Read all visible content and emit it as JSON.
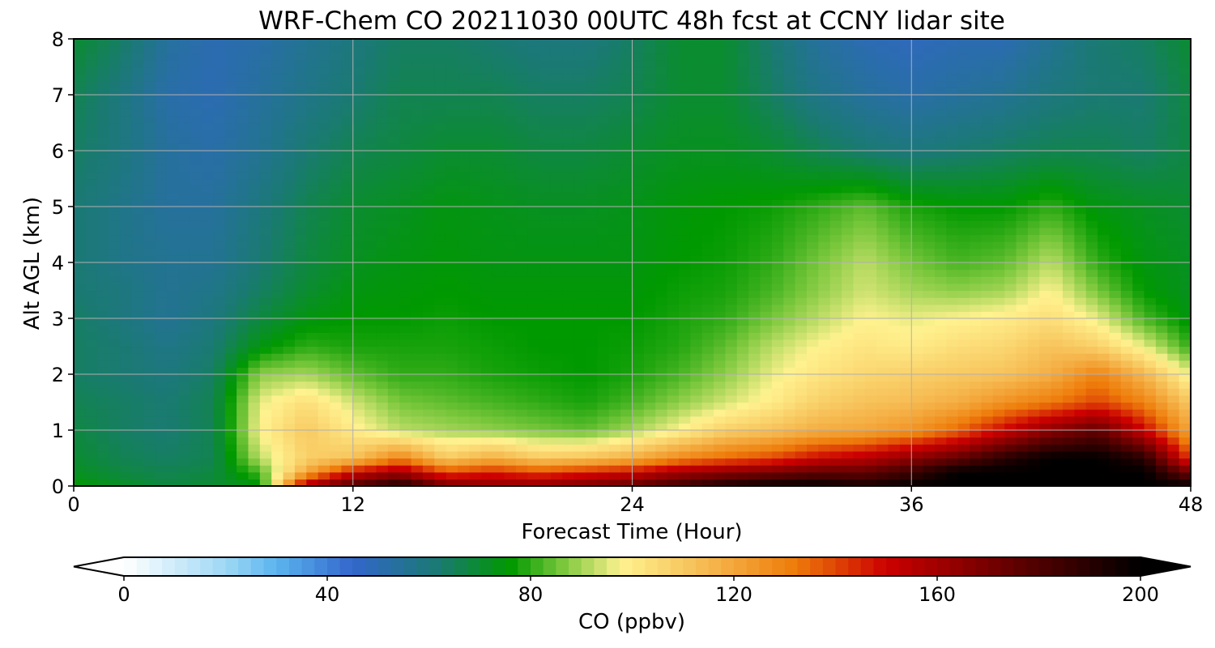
{
  "chart_data": {
    "type": "heatmap",
    "title": "WRF-Chem CO  20211030 00UTC 48h fcst at CCNY lidar site",
    "xlabel": "Forecast Time (Hour)",
    "ylabel": "Alt AGL (km)",
    "xlim": [
      0,
      48
    ],
    "ylim": [
      0,
      8
    ],
    "xticks": [
      0,
      12,
      24,
      36,
      48
    ],
    "yticks": [
      0,
      1,
      2,
      3,
      4,
      5,
      6,
      7,
      8
    ],
    "grid": true,
    "colorbar": {
      "label": "CO  (ppbv)",
      "min": 0,
      "max": 200,
      "ticks": [
        0,
        40,
        80,
        120,
        160,
        200
      ],
      "extend": "both",
      "stops": [
        {
          "v": 0,
          "c": "#ffffff"
        },
        {
          "v": 20,
          "c": "#9fd8f5"
        },
        {
          "v": 30,
          "c": "#5ab4ee"
        },
        {
          "v": 45,
          "c": "#3366cc"
        },
        {
          "v": 62,
          "c": "#1a7a72"
        },
        {
          "v": 76,
          "c": "#009900"
        },
        {
          "v": 86,
          "c": "#77c63a"
        },
        {
          "v": 98,
          "c": "#fff28f"
        },
        {
          "v": 112,
          "c": "#f7c25a"
        },
        {
          "v": 132,
          "c": "#ee7c0a"
        },
        {
          "v": 150,
          "c": "#cc0000"
        },
        {
          "v": 174,
          "c": "#660000"
        },
        {
          "v": 200,
          "c": "#000000"
        }
      ]
    },
    "x": [
      0,
      2,
      4,
      6,
      8,
      10,
      12,
      14,
      16,
      18,
      20,
      22,
      24,
      26,
      28,
      30,
      32,
      34,
      36,
      38,
      40,
      42,
      44,
      46,
      48
    ],
    "y": [
      0,
      0.25,
      0.5,
      1,
      1.5,
      2,
      2.5,
      3,
      3.5,
      4,
      5,
      6,
      7,
      8
    ],
    "z": [
      [
        76,
        72,
        68,
        70,
        74,
        160,
        180,
        195,
        170,
        165,
        165,
        170,
        175,
        185,
        195,
        200,
        200,
        195,
        200,
        200,
        200,
        200,
        200,
        200,
        200
      ],
      [
        72,
        68,
        66,
        68,
        82,
        120,
        150,
        160,
        140,
        145,
        140,
        145,
        150,
        160,
        165,
        170,
        175,
        175,
        185,
        200,
        200,
        200,
        200,
        200,
        170
      ],
      [
        70,
        66,
        64,
        66,
        92,
        108,
        112,
        130,
        110,
        118,
        110,
        112,
        118,
        128,
        135,
        140,
        150,
        155,
        165,
        175,
        190,
        200,
        200,
        190,
        140
      ],
      [
        68,
        64,
        62,
        66,
        98,
        110,
        100,
        92,
        90,
        88,
        86,
        84,
        90,
        98,
        108,
        112,
        118,
        120,
        125,
        135,
        150,
        165,
        175,
        150,
        120
      ],
      [
        66,
        64,
        62,
        66,
        96,
        104,
        94,
        86,
        84,
        82,
        80,
        78,
        82,
        88,
        94,
        100,
        108,
        112,
        114,
        118,
        126,
        132,
        140,
        130,
        110
      ],
      [
        64,
        62,
        60,
        64,
        88,
        90,
        84,
        80,
        80,
        78,
        77,
        76,
        78,
        82,
        88,
        96,
        102,
        106,
        108,
        110,
        112,
        118,
        130,
        115,
        96
      ],
      [
        64,
        62,
        58,
        62,
        74,
        80,
        78,
        78,
        78,
        77,
        76,
        76,
        77,
        79,
        84,
        92,
        98,
        102,
        100,
        104,
        106,
        112,
        108,
        96,
        80
      ],
      [
        64,
        60,
        56,
        60,
        68,
        74,
        76,
        76,
        77,
        76,
        76,
        76,
        76,
        78,
        80,
        86,
        92,
        98,
        96,
        98,
        100,
        104,
        96,
        82,
        74
      ],
      [
        62,
        60,
        56,
        58,
        64,
        70,
        74,
        75,
        76,
        75,
        75,
        75,
        75,
        77,
        78,
        82,
        88,
        94,
        90,
        88,
        90,
        98,
        86,
        76,
        72
      ],
      [
        62,
        58,
        56,
        56,
        62,
        68,
        72,
        74,
        75,
        74,
        74,
        74,
        74,
        76,
        77,
        80,
        86,
        92,
        86,
        82,
        84,
        92,
        80,
        74,
        72
      ],
      [
        62,
        58,
        54,
        54,
        60,
        66,
        70,
        72,
        74,
        73,
        72,
        72,
        73,
        75,
        76,
        77,
        80,
        84,
        78,
        76,
        76,
        80,
        74,
        72,
        70
      ],
      [
        64,
        60,
        54,
        52,
        56,
        62,
        66,
        68,
        70,
        70,
        68,
        68,
        70,
        72,
        72,
        70,
        66,
        62,
        60,
        62,
        64,
        66,
        66,
        64,
        68
      ],
      [
        66,
        60,
        52,
        50,
        54,
        58,
        62,
        66,
        66,
        66,
        64,
        64,
        66,
        70,
        70,
        64,
        58,
        54,
        52,
        54,
        56,
        60,
        62,
        62,
        68
      ],
      [
        70,
        64,
        54,
        50,
        52,
        56,
        60,
        64,
        64,
        62,
        60,
        60,
        64,
        70,
        70,
        62,
        54,
        50,
        48,
        50,
        50,
        56,
        62,
        64,
        70
      ]
    ]
  }
}
